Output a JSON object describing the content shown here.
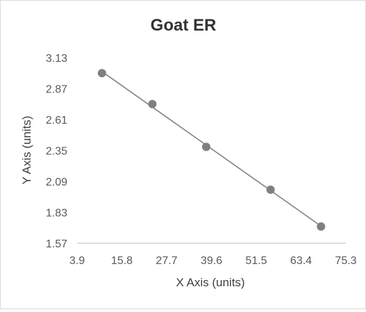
{
  "chart_data": {
    "type": "scatter",
    "title": "Goat ER",
    "xlabel": "X Axis (units)",
    "ylabel": "Y Axis (units)",
    "xlim": [
      3.9,
      75.3
    ],
    "ylim": [
      1.57,
      3.13
    ],
    "x_ticks": [
      "3.9",
      "15.8",
      "27.7",
      "39.6",
      "51.5",
      "63.4",
      "75.3"
    ],
    "y_ticks": [
      "3.13",
      "2.87",
      "2.61",
      "2.35",
      "2.09",
      "1.83",
      "1.57"
    ],
    "grid": false,
    "trendline": "linear",
    "colors": {
      "marker": "#808080",
      "trendline": "#808080",
      "axis": "#bfbfbf"
    },
    "series": [
      {
        "x": [
          10.5,
          23.9,
          38.2,
          55.3,
          68.7
        ],
        "y": [
          3.0,
          2.74,
          2.38,
          2.02,
          1.71
        ]
      }
    ]
  }
}
